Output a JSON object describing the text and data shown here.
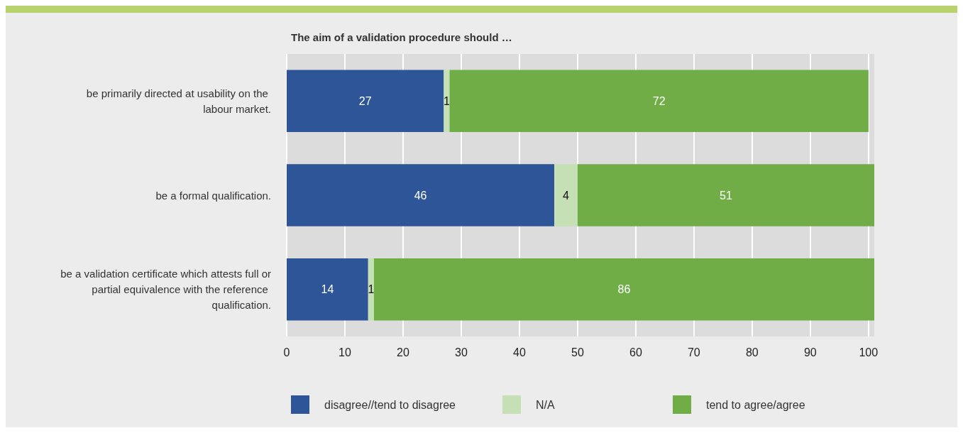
{
  "chart_data": {
    "type": "bar",
    "orientation": "horizontal",
    "stacked": true,
    "title": "The aim of a validation procedure should …",
    "categories": [
      "be primarily directed at usability on the labour market.",
      "be a formal qualification.",
      "be a validation certificate which attests full or partial equivalence with the reference qualification."
    ],
    "series": [
      {
        "name": "disagree//tend to disagree",
        "color": "#2e5597",
        "values": [
          27,
          46,
          14
        ]
      },
      {
        "name": "N/A",
        "color": "#c5e0b4",
        "values": [
          1,
          4,
          1
        ]
      },
      {
        "name": "tend to agree/agree",
        "color": "#70ad47",
        "values": [
          72,
          51,
          86
        ]
      }
    ],
    "xlim": [
      0,
      101
    ],
    "xticks": [
      0,
      10,
      20,
      30,
      40,
      50,
      60,
      70,
      80,
      90,
      100
    ],
    "grid": "x",
    "legend": "bottom",
    "data_labels": true
  }
}
